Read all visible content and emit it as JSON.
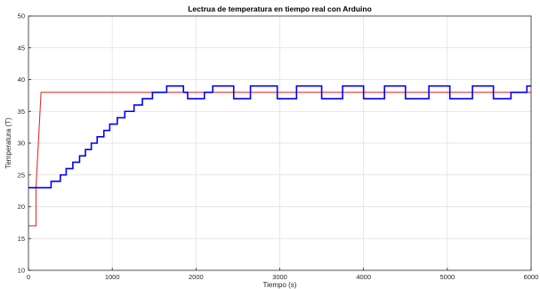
{
  "chart_data": {
    "type": "line",
    "title": "Lectrua de temperatura en tiempo real con Arduino",
    "xlabel": "Tiempo (s)",
    "ylabel": "Temperatura (T)",
    "xlim": [
      0,
      6000
    ],
    "ylim": [
      10,
      50
    ],
    "xticks": [
      0,
      1000,
      2000,
      3000,
      4000,
      5000,
      6000
    ],
    "yticks": [
      10,
      15,
      20,
      25,
      30,
      35,
      40,
      45,
      50
    ],
    "grid": true,
    "colors": {
      "setpoint": "#e8302a",
      "measured": "#0000ff"
    },
    "series": [
      {
        "key": "setpoint",
        "x": [
          0,
          90,
          90,
          150,
          6000
        ],
        "y": [
          17,
          17,
          23,
          38,
          38
        ]
      },
      {
        "key": "measured",
        "x": [
          0,
          270,
          270,
          380,
          380,
          450,
          450,
          530,
          530,
          610,
          610,
          680,
          680,
          750,
          750,
          820,
          820,
          900,
          900,
          970,
          970,
          1060,
          1060,
          1150,
          1150,
          1260,
          1260,
          1360,
          1360,
          1480,
          1480,
          1650,
          1650,
          1850,
          1850,
          1900,
          1900,
          2100,
          2100,
          2200,
          2200,
          2450,
          2450,
          2650,
          2650,
          2970,
          2970,
          3200,
          3200,
          3500,
          3500,
          3750,
          3750,
          4000,
          4000,
          4250,
          4250,
          4500,
          4500,
          4780,
          4780,
          5030,
          5030,
          5300,
          5300,
          5550,
          5550,
          5760,
          5760,
          5950,
          5950,
          6000
        ],
        "y": [
          23,
          23,
          24,
          24,
          25,
          25,
          26,
          26,
          27,
          27,
          28,
          28,
          29,
          29,
          30,
          30,
          31,
          31,
          32,
          32,
          33,
          33,
          34,
          34,
          35,
          35,
          36,
          36,
          37,
          37,
          38,
          38,
          39,
          39,
          38,
          38,
          37,
          37,
          38,
          38,
          39,
          39,
          37,
          37,
          39,
          39,
          37,
          37,
          39,
          39,
          37,
          37,
          39,
          39,
          37,
          37,
          39,
          39,
          37,
          37,
          39,
          39,
          37,
          37,
          39,
          39,
          37,
          37,
          38,
          38,
          39,
          39
        ]
      }
    ]
  }
}
